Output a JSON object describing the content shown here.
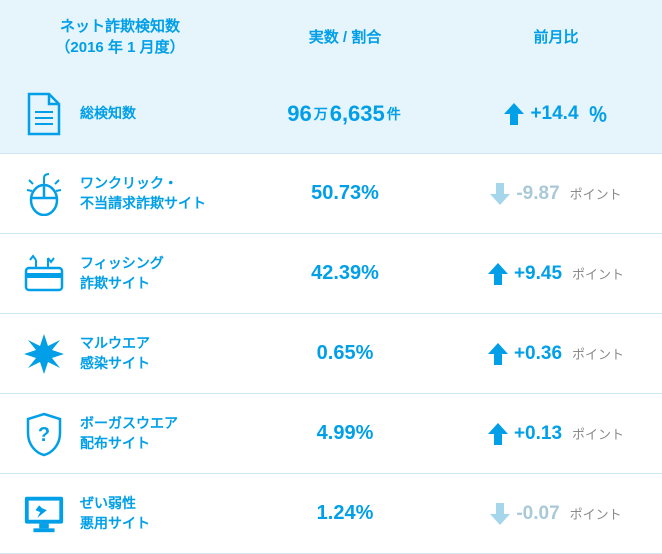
{
  "colors": {
    "primary": "#009fe8",
    "light_bg": "#e6f4fb",
    "muted_arrow": "#a5d6eb",
    "muted_text": "#a9c9d6",
    "unit_gray": "#8a8a8a",
    "border": "#d0e8f5"
  },
  "header": {
    "col1_line1": "ネット詐欺検知数",
    "col1_line2": "（2016 年 1 月度）",
    "col2": "実数 / 割合",
    "col3": "前月比"
  },
  "rows": [
    {
      "icon": "document",
      "label": "総検知数",
      "value_html": [
        {
          "t": "96",
          "cls": "value-main"
        },
        {
          "t": "万",
          "cls": "value-unit"
        },
        {
          "t": "6,635",
          "cls": "value-main"
        },
        {
          "t": "件",
          "cls": "value-unit"
        }
      ],
      "delta_dir": "up",
      "delta_value": "+14.4",
      "delta_unit": "％",
      "highlight": true
    },
    {
      "icon": "mouse",
      "label": "ワンクリック・\n不当請求詐欺サイト",
      "value_html": [
        {
          "t": "50.73%",
          "cls": "pct"
        }
      ],
      "delta_dir": "down",
      "delta_value": "-9.87",
      "delta_unit": "ポイント",
      "highlight": false
    },
    {
      "icon": "card",
      "label": "フィッシング\n詐欺サイト",
      "value_html": [
        {
          "t": "42.39%",
          "cls": "pct"
        }
      ],
      "delta_dir": "up",
      "delta_value": "+9.45",
      "delta_unit": "ポイント",
      "highlight": false
    },
    {
      "icon": "burst",
      "label": "マルウエア\n感染サイト",
      "value_html": [
        {
          "t": "0.65%",
          "cls": "pct"
        }
      ],
      "delta_dir": "up",
      "delta_value": "+0.36",
      "delta_unit": "ポイント",
      "highlight": false
    },
    {
      "icon": "shield",
      "label": "ボーガスウエア\n配布サイト",
      "value_html": [
        {
          "t": "4.99%",
          "cls": "pct"
        }
      ],
      "delta_dir": "up",
      "delta_value": "+0.13",
      "delta_unit": "ポイント",
      "highlight": false
    },
    {
      "icon": "monitor",
      "label": "ぜい弱性\n悪用サイト",
      "value_html": [
        {
          "t": "1.24%",
          "cls": "pct"
        }
      ],
      "delta_dir": "down",
      "delta_value": "-0.07",
      "delta_unit": "ポイント",
      "highlight": false
    }
  ]
}
